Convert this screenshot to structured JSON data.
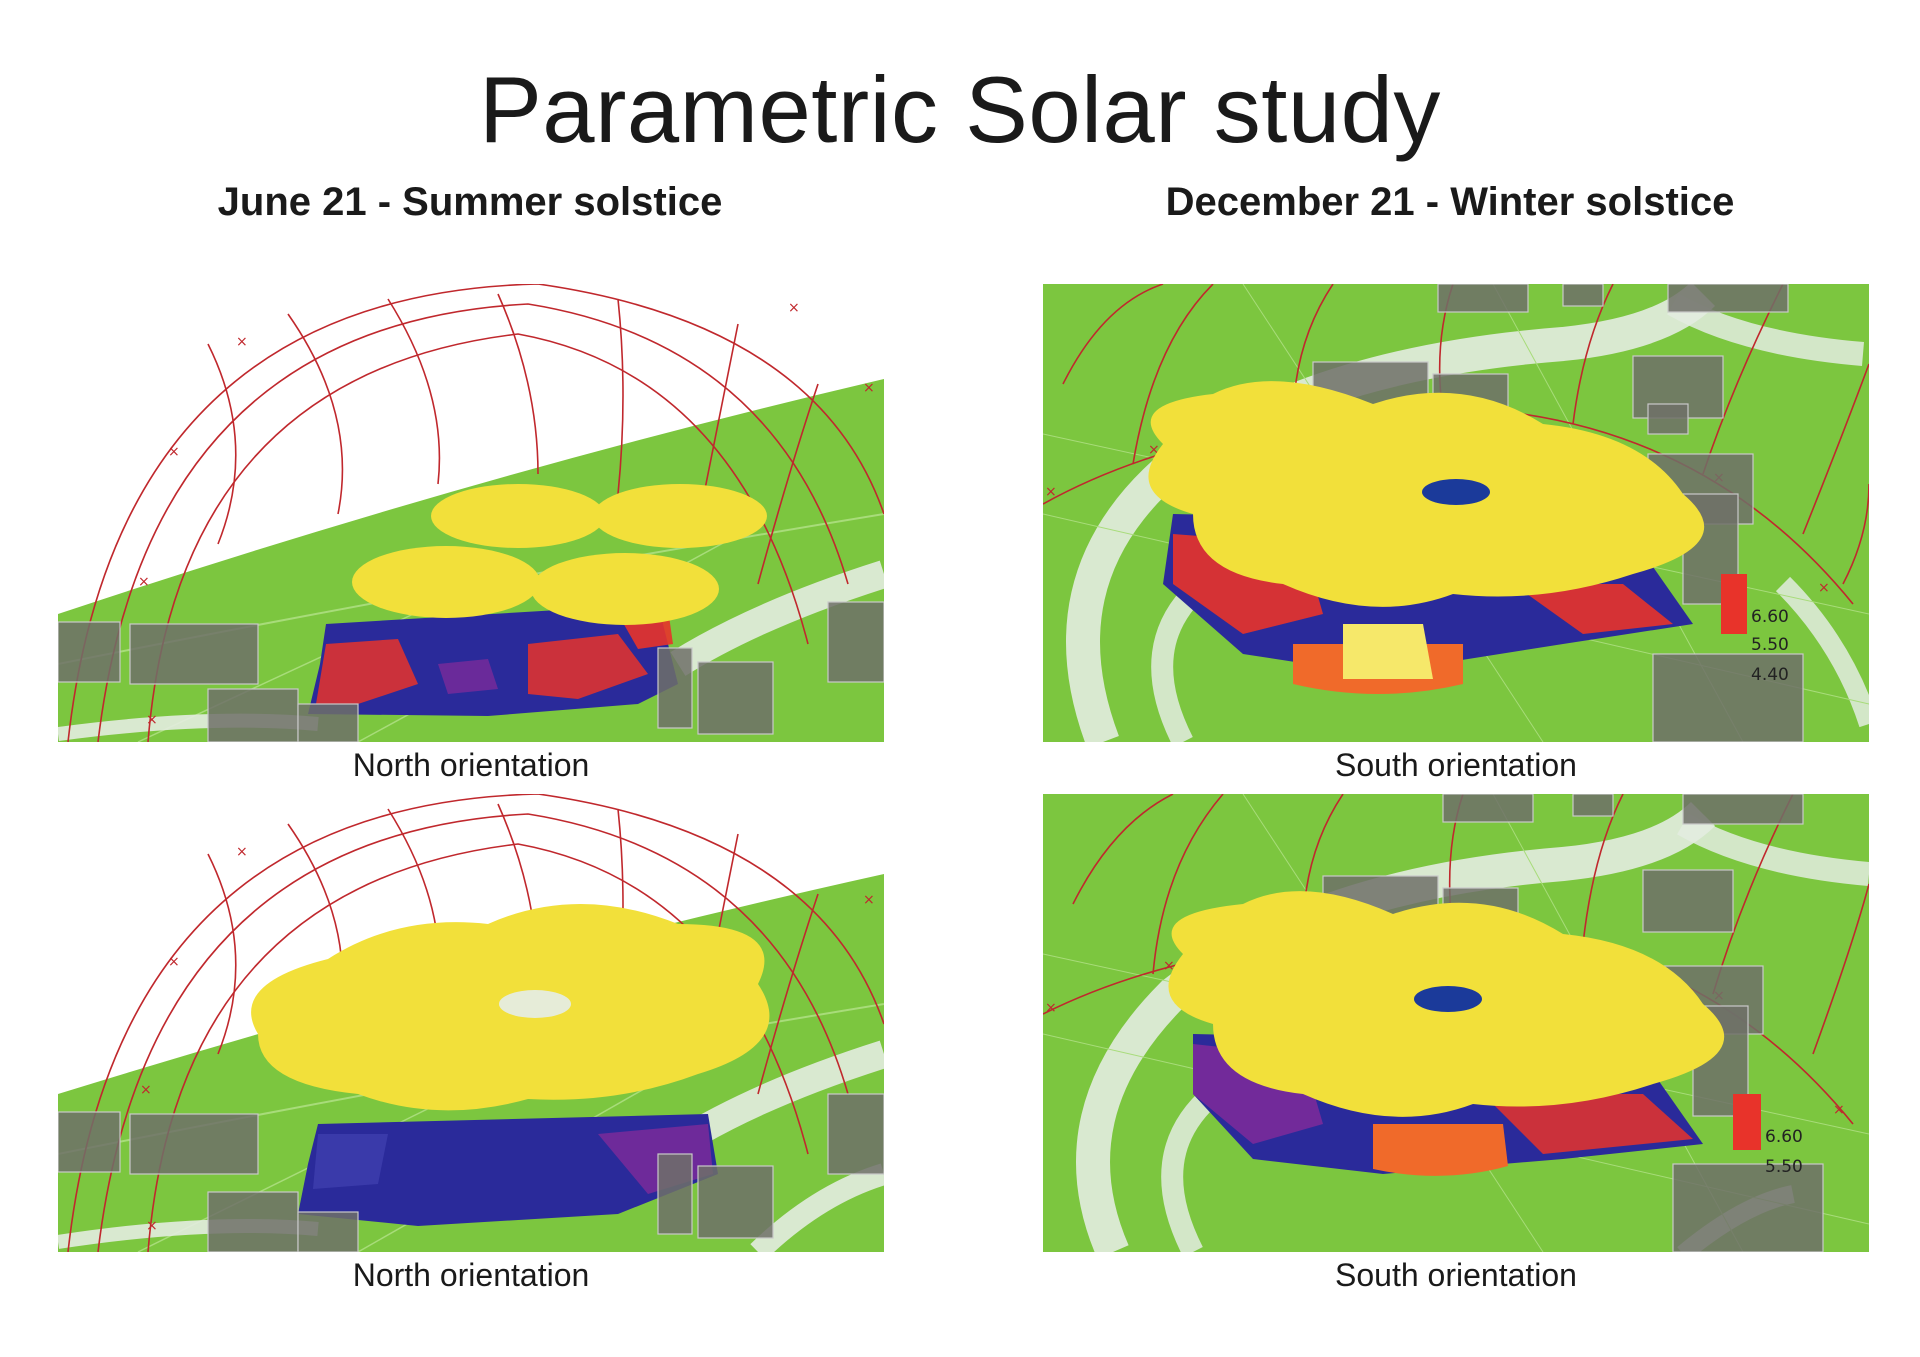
{
  "title": "Parametric Solar study",
  "columns": {
    "left": "June 21 - Summer solstice",
    "right": "December 21 - Winter solstice"
  },
  "panels": {
    "top_left": {
      "caption": "North orientation"
    },
    "top_right": {
      "caption": "South orientation",
      "legend_values": [
        "6.60",
        "5.50",
        "4.40"
      ]
    },
    "bottom_left": {
      "caption": "North orientation"
    },
    "bottom_right": {
      "caption": "South orientation",
      "legend_values": [
        "6.60",
        "5.50"
      ]
    }
  },
  "colors": {
    "ground": "#7cc63f",
    "roof": "#f2e03a",
    "sunpath": "#c0282d",
    "radiation_low": "#2a2a9a",
    "radiation_high": "#e8332a",
    "building": "#6e7068",
    "road": "#e3ece0"
  }
}
